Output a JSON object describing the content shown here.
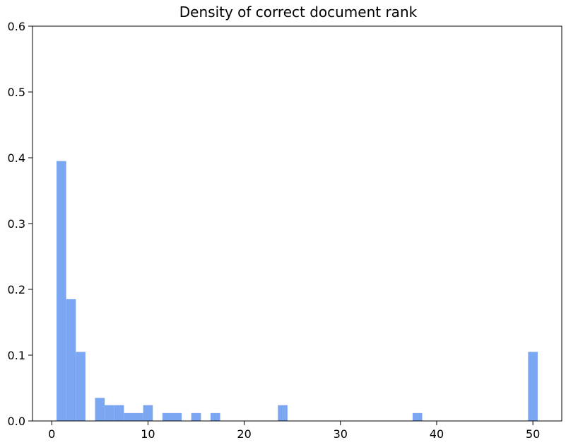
{
  "chart_data": {
    "type": "bar",
    "title": "Density of correct document rank",
    "xlabel": "",
    "ylabel": "",
    "xlim": [
      -2.0,
      53.0
    ],
    "ylim": [
      0,
      0.6
    ],
    "xticks": [
      0,
      10,
      20,
      30,
      40,
      50
    ],
    "yticks": [
      0.0,
      0.1,
      0.2,
      0.3,
      0.4,
      0.5,
      0.6
    ],
    "xtick_labels": [
      "0",
      "10",
      "20",
      "30",
      "40",
      "50"
    ],
    "ytick_labels": [
      "0.0",
      "0.1",
      "0.2",
      "0.3",
      "0.4",
      "0.5",
      "0.6"
    ],
    "bin_width": 1.0,
    "bins": [
      {
        "x": 1,
        "value": 0.395
      },
      {
        "x": 2,
        "value": 0.185
      },
      {
        "x": 3,
        "value": 0.105
      },
      {
        "x": 5,
        "value": 0.035
      },
      {
        "x": 6,
        "value": 0.024
      },
      {
        "x": 7,
        "value": 0.024
      },
      {
        "x": 8,
        "value": 0.012
      },
      {
        "x": 9,
        "value": 0.012
      },
      {
        "x": 10,
        "value": 0.024
      },
      {
        "x": 12,
        "value": 0.012
      },
      {
        "x": 13,
        "value": 0.012
      },
      {
        "x": 15,
        "value": 0.012
      },
      {
        "x": 17,
        "value": 0.012
      },
      {
        "x": 24,
        "value": 0.024
      },
      {
        "x": 38,
        "value": 0.012
      },
      {
        "x": 50,
        "value": 0.105
      }
    ],
    "bar_color": "#7aa6f2",
    "grid": false
  }
}
